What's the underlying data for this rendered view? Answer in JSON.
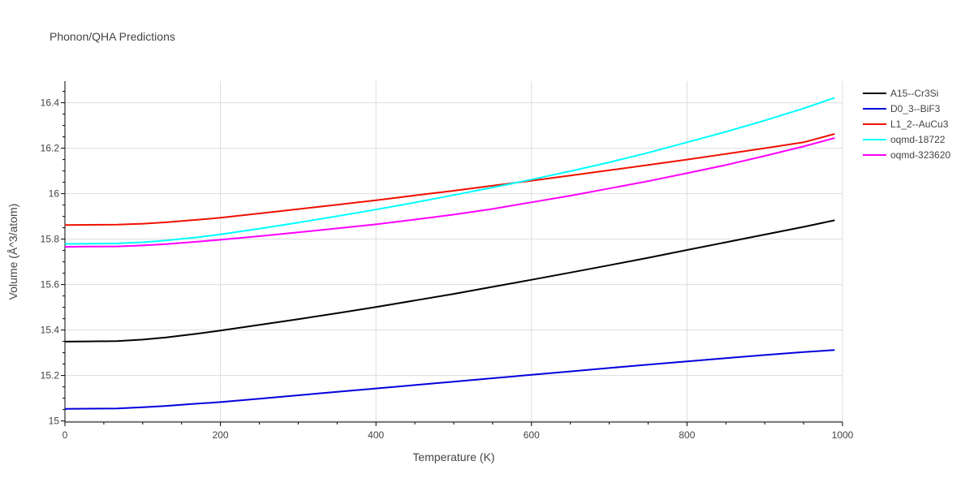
{
  "chart_data": {
    "type": "line",
    "title": "Phonon/QHA Predictions",
    "xlabel": "Temperature (K)",
    "ylabel": "Volume (Å^3/atom)",
    "xlim": [
      0,
      1000
    ],
    "ylim": [
      14.995,
      16.495
    ],
    "x_ticks": [
      0,
      200,
      400,
      600,
      800,
      1000
    ],
    "x_tick_labels": [
      "0",
      "200",
      "400",
      "600",
      "800",
      "1000"
    ],
    "y_ticks": [
      15,
      15.2,
      15.4,
      15.6,
      15.8,
      16,
      16.2,
      16.4
    ],
    "y_tick_labels": [
      "15",
      "15.2",
      "15.4",
      "15.6",
      "15.8",
      "16",
      "16.2",
      "16.4"
    ],
    "grid": true,
    "legend_position": "top-right",
    "series": [
      {
        "name": "A15--Cr3Si",
        "color": "#000000",
        "x": [
          0,
          30,
          67,
          100,
          130,
          170,
          200,
          250,
          300,
          350,
          400,
          450,
          500,
          550,
          600,
          650,
          700,
          750,
          800,
          850,
          900,
          950,
          990
        ],
        "y": [
          15.349,
          15.35,
          15.351,
          15.358,
          15.367,
          15.384,
          15.398,
          15.423,
          15.448,
          15.474,
          15.501,
          15.53,
          15.559,
          15.59,
          15.621,
          15.653,
          15.685,
          15.718,
          15.752,
          15.786,
          15.82,
          15.854,
          15.883
        ]
      },
      {
        "name": "D0_3--BiF3",
        "color": "#0000dd",
        "x": [
          0,
          30,
          67,
          100,
          130,
          170,
          200,
          250,
          300,
          350,
          400,
          450,
          500,
          550,
          600,
          650,
          700,
          750,
          800,
          850,
          900,
          950,
          990
        ],
        "y": [
          15.053,
          15.054,
          15.055,
          15.06,
          15.066,
          15.076,
          15.083,
          15.098,
          15.113,
          15.128,
          15.143,
          15.158,
          15.173,
          15.188,
          15.203,
          15.218,
          15.233,
          15.248,
          15.262,
          15.276,
          15.29,
          15.303,
          15.312
        ]
      },
      {
        "name": "L1_2--AuCu3",
        "color": "#ee1100",
        "x": [
          0,
          30,
          67,
          100,
          130,
          170,
          200,
          250,
          300,
          350,
          400,
          450,
          500,
          550,
          600,
          650,
          700,
          750,
          800,
          850,
          900,
          950,
          990
        ],
        "y": [
          15.862,
          15.863,
          15.864,
          15.868,
          15.874,
          15.885,
          15.894,
          15.913,
          15.932,
          15.951,
          15.971,
          15.992,
          16.013,
          16.035,
          16.057,
          16.08,
          16.103,
          16.126,
          16.15,
          16.175,
          16.2,
          16.226,
          16.263
        ]
      },
      {
        "name": "oqmd-18722",
        "color": "#00ffff",
        "x": [
          0,
          30,
          67,
          100,
          130,
          170,
          200,
          250,
          300,
          350,
          400,
          450,
          500,
          550,
          600,
          650,
          700,
          750,
          800,
          850,
          900,
          950,
          990
        ],
        "y": [
          15.779,
          15.78,
          15.781,
          15.786,
          15.794,
          15.808,
          15.821,
          15.846,
          15.873,
          15.901,
          15.93,
          15.961,
          15.994,
          16.027,
          16.062,
          16.099,
          16.138,
          16.18,
          16.226,
          16.272,
          16.322,
          16.375,
          16.422
        ]
      },
      {
        "name": "oqmd-323620",
        "color": "#ff00ff",
        "x": [
          0,
          30,
          67,
          100,
          130,
          170,
          200,
          250,
          300,
          350,
          400,
          450,
          500,
          550,
          600,
          650,
          700,
          750,
          800,
          850,
          900,
          950,
          990
        ],
        "y": [
          15.766,
          15.767,
          15.768,
          15.772,
          15.778,
          15.789,
          15.797,
          15.813,
          15.83,
          15.847,
          15.865,
          15.886,
          15.908,
          15.933,
          15.962,
          15.991,
          16.023,
          16.055,
          16.09,
          16.126,
          16.166,
          16.208,
          16.245
        ]
      }
    ]
  }
}
